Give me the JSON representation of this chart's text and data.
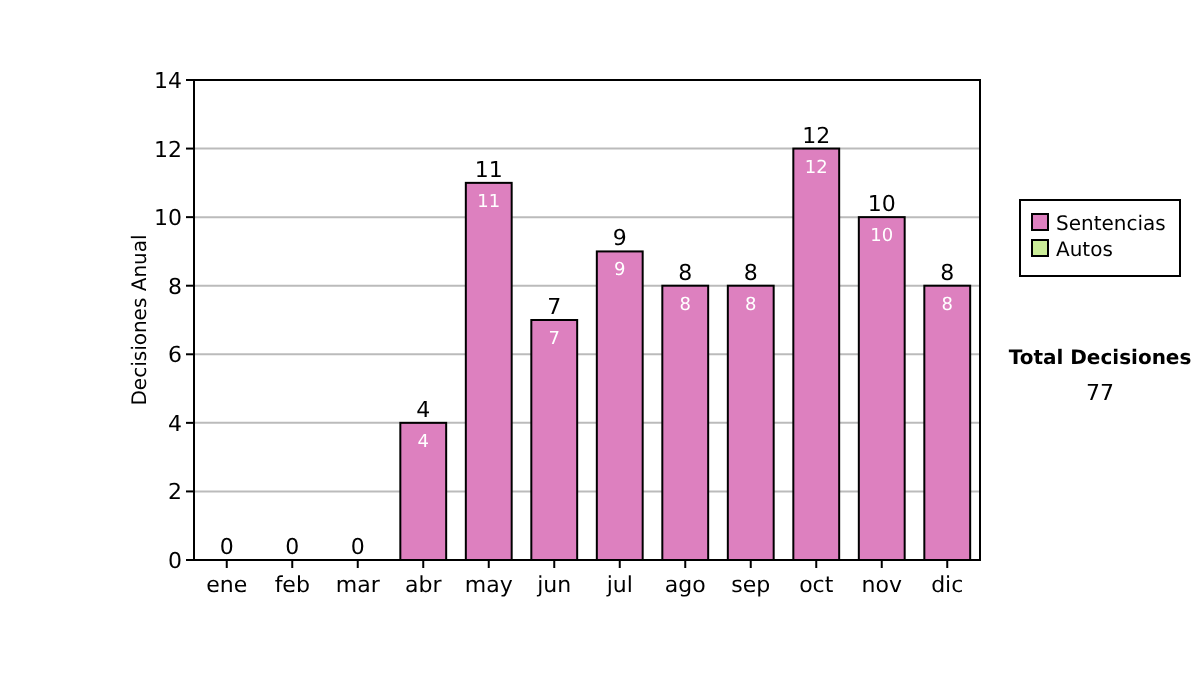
{
  "chart_data": {
    "type": "bar",
    "ylabel": "Decisiones Anual",
    "categories": [
      "ene",
      "feb",
      "mar",
      "abr",
      "may",
      "jun",
      "jul",
      "ago",
      "sep",
      "oct",
      "nov",
      "dic"
    ],
    "series": [
      {
        "name": "Sentencias",
        "color": "#dd80bf",
        "values": [
          0,
          0,
          0,
          4,
          11,
          7,
          9,
          8,
          8,
          12,
          10,
          8
        ],
        "value_labels": [
          null,
          null,
          null,
          "4",
          "11",
          "7",
          "9",
          "8",
          "8",
          "12",
          "10",
          "8"
        ]
      },
      {
        "name": "Autos",
        "color": "#ccee99",
        "values": [
          0,
          0,
          0,
          0,
          0,
          0,
          0,
          0,
          0,
          0,
          0,
          0
        ]
      }
    ],
    "stacked": true,
    "totals": [
      "0",
      "0",
      "0",
      "4",
      "11",
      "7",
      "9",
      "8",
      "8",
      "12",
      "10",
      "8"
    ],
    "ylim": [
      0,
      14
    ],
    "yticks": [
      0,
      2,
      4,
      6,
      8,
      10,
      12,
      14
    ],
    "grid": "y",
    "legend": "right",
    "annotations": [
      "Total Decisiones",
      "77"
    ]
  }
}
